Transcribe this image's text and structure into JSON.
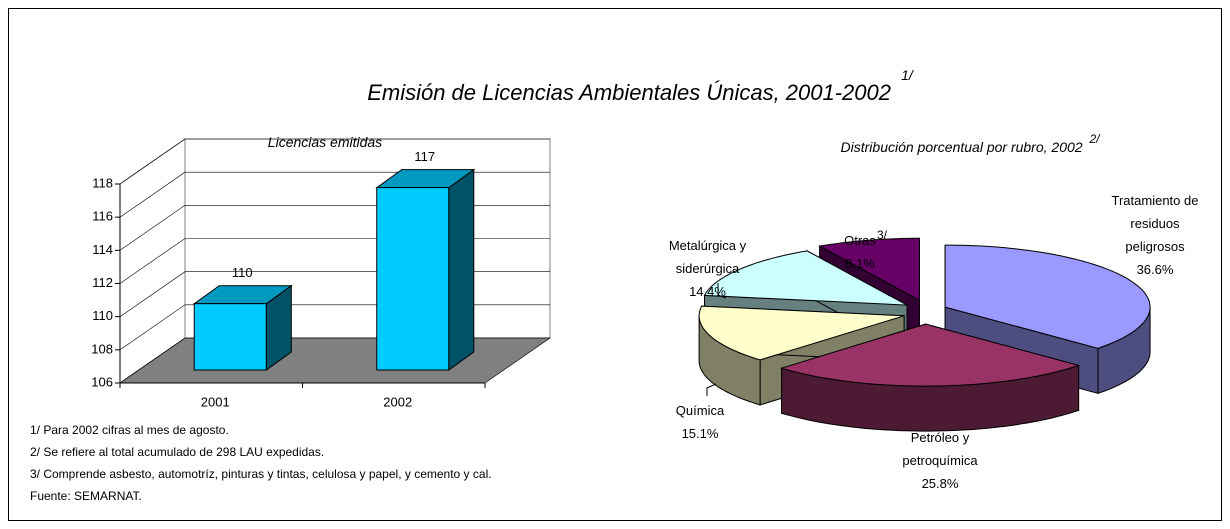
{
  "title": "Emisión de Licencias Ambientales Únicas, 2001-2002",
  "title_note": "1/",
  "chart_data": [
    {
      "type": "bar",
      "title": "Licencias emitidas",
      "categories": [
        "2001",
        "2002"
      ],
      "values": [
        110,
        117
      ],
      "color": "#00ccff",
      "ylim": [
        106,
        118
      ],
      "yticks": [
        106,
        108,
        110,
        112,
        114,
        116,
        118
      ],
      "grid": true
    },
    {
      "type": "pie",
      "title": "Distribución porcentual por rubro, 2002",
      "title_note": "2/",
      "categories": [
        "Tratamiento de residuos peligrosos",
        "Petróleo y petroquímica",
        "Química",
        "Metalúrgica y siderúrgica",
        "Otras"
      ],
      "values": [
        36.6,
        25.8,
        15.1,
        14.4,
        8.1
      ],
      "value_labels": [
        "36.6%",
        "25.8%",
        "15.1%",
        "14.4%",
        "8.1%"
      ],
      "colors": [
        "#9999ff",
        "#993366",
        "#ffffcc",
        "#ccffff",
        "#660066"
      ],
      "annotations": [
        "3/"
      ]
    }
  ],
  "notes": [
    "1/ Para 2002 cifras al mes de agosto.",
    "2/ Se refiere al total acumulado de 298 LAU expedidas.",
    "3/ Comprende asbesto, automotríz, pinturas y tintas, celulosa y papel, y cemento y cal.",
    "Fuente: SEMARNAT."
  ]
}
